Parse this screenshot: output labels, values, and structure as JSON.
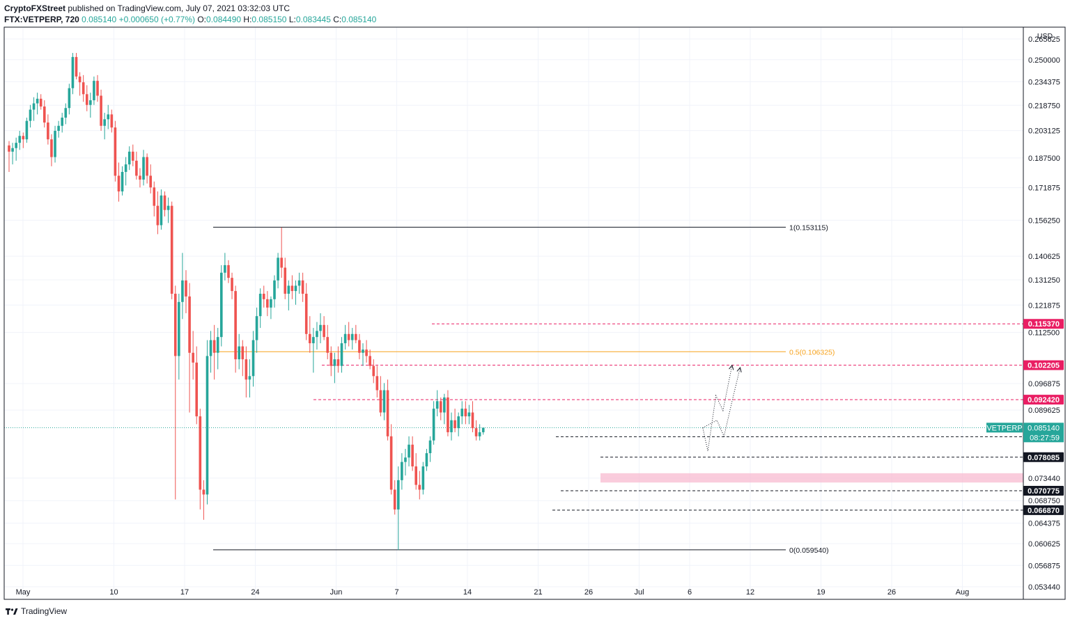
{
  "header": {
    "publisher": "CryptoFXStreet",
    "published_text": "published on TradingView.com, July 07, 2021 03:32:03 UTC",
    "symbol": "FTX:VETPERP, 720",
    "last": "0.085140",
    "change": "+0.000650 (+0.77%)",
    "o_label": "O:",
    "o": "0.084490",
    "h_label": "H:",
    "h": "0.085150",
    "l_label": "L:",
    "l": "0.083445",
    "c_label": "C:",
    "c": "0.085140"
  },
  "footer": {
    "brand": "TradingView",
    "logo_icon": "tradingview-logo-icon"
  },
  "chart_data": {
    "type": "candlestick",
    "currency": "USD",
    "y_ticks": [
      "0.265625",
      "0.250000",
      "0.234375",
      "0.218750",
      "0.203125",
      "0.187500",
      "0.171875",
      "0.156250",
      "0.140625",
      "0.131250",
      "0.121875",
      "0.112500",
      "0.096875",
      "0.089625",
      "0.073440",
      "0.068750",
      "0.064375",
      "0.060625",
      "0.056875",
      "0.053440"
    ],
    "x_ticks": [
      "May",
      "10",
      "17",
      "24",
      "Jun",
      "7",
      "14",
      "21",
      "26",
      "Jul",
      "6",
      "12",
      "19",
      "26",
      "Aug"
    ],
    "y_range": [
      0.0515,
      0.275
    ],
    "fib_levels": [
      {
        "label": "1(0.153115)",
        "value": 0.153115,
        "color": "#131722"
      },
      {
        "label": "0.5(0.106325)",
        "value": 0.106325,
        "color": "#f7a21b"
      },
      {
        "label": "0(0.059540)",
        "value": 0.05954,
        "color": "#131722"
      }
    ],
    "horizontal_levels": [
      {
        "label": "0.115370",
        "value": 0.11537,
        "style": "dashed",
        "color": "#e91e63"
      },
      {
        "label": "0.102205",
        "value": 0.102205,
        "style": "dashed",
        "color": "#e91e63"
      },
      {
        "label": "0.092420",
        "value": 0.09242,
        "style": "dashed",
        "color": "#e91e63"
      },
      {
        "label": "0.082910",
        "value": 0.08291,
        "style": "dashed",
        "color": "#131722"
      },
      {
        "label": "0.078085",
        "value": 0.078085,
        "style": "dashed",
        "color": "#131722"
      },
      {
        "label": "0.070775",
        "value": 0.070775,
        "style": "dashed",
        "color": "#131722"
      },
      {
        "label": "0.066870",
        "value": 0.06687,
        "style": "dashed",
        "color": "#131722"
      }
    ],
    "demand_zone": {
      "low": 0.0725,
      "high": 0.0745,
      "color": "#f8bbd0"
    },
    "price_tag": {
      "symbol": "VETPERP",
      "value": "0.085140",
      "countdown": "08:27:59",
      "color": "#26a69a"
    },
    "projection_paths": [
      [
        [
          7.3,
          0.0851
        ],
        [
          7.8,
          0.0795
        ],
        [
          8.6,
          0.0935
        ],
        [
          9.3,
          0.0895
        ],
        [
          10.2,
          0.1022
        ]
      ],
      [
        [
          7.3,
          0.0851
        ],
        [
          8.7,
          0.087
        ],
        [
          9.4,
          0.083
        ],
        [
          10.2,
          0.092
        ],
        [
          11.0,
          0.1015
        ]
      ]
    ],
    "candles": [
      [
        0.1945,
        0.197,
        0.18,
        0.191
      ],
      [
        0.191,
        0.196,
        0.184,
        0.193
      ],
      [
        0.193,
        0.199,
        0.186,
        0.196
      ],
      [
        0.196,
        0.203,
        0.192,
        0.2
      ],
      [
        0.2,
        0.202,
        0.193,
        0.198
      ],
      [
        0.198,
        0.211,
        0.196,
        0.209
      ],
      [
        0.209,
        0.219,
        0.205,
        0.216
      ],
      [
        0.216,
        0.224,
        0.209,
        0.22
      ],
      [
        0.22,
        0.227,
        0.213,
        0.223
      ],
      [
        0.223,
        0.226,
        0.216,
        0.218
      ],
      [
        0.218,
        0.222,
        0.205,
        0.208
      ],
      [
        0.208,
        0.213,
        0.195,
        0.198
      ],
      [
        0.198,
        0.201,
        0.183,
        0.188
      ],
      [
        0.188,
        0.206,
        0.185,
        0.203
      ],
      [
        0.203,
        0.209,
        0.199,
        0.206
      ],
      [
        0.206,
        0.214,
        0.202,
        0.211
      ],
      [
        0.211,
        0.22,
        0.207,
        0.217
      ],
      [
        0.217,
        0.233,
        0.213,
        0.23
      ],
      [
        0.23,
        0.255,
        0.226,
        0.252
      ],
      [
        0.252,
        0.255,
        0.236,
        0.238
      ],
      [
        0.238,
        0.241,
        0.225,
        0.234
      ],
      [
        0.234,
        0.239,
        0.221,
        0.226
      ],
      [
        0.226,
        0.232,
        0.215,
        0.219
      ],
      [
        0.219,
        0.227,
        0.211,
        0.222
      ],
      [
        0.222,
        0.238,
        0.219,
        0.235
      ],
      [
        0.235,
        0.239,
        0.221,
        0.225
      ],
      [
        0.225,
        0.229,
        0.203,
        0.206
      ],
      [
        0.206,
        0.214,
        0.198,
        0.21
      ],
      [
        0.21,
        0.219,
        0.204,
        0.213
      ],
      [
        0.213,
        0.216,
        0.202,
        0.205
      ],
      [
        0.205,
        0.209,
        0.175,
        0.178
      ],
      [
        0.178,
        0.185,
        0.165,
        0.17
      ],
      [
        0.17,
        0.183,
        0.168,
        0.18
      ],
      [
        0.18,
        0.188,
        0.173,
        0.184
      ],
      [
        0.184,
        0.194,
        0.181,
        0.191
      ],
      [
        0.191,
        0.195,
        0.183,
        0.186
      ],
      [
        0.186,
        0.191,
        0.176,
        0.178
      ],
      [
        0.178,
        0.182,
        0.172,
        0.176
      ],
      [
        0.176,
        0.192,
        0.173,
        0.188
      ],
      [
        0.188,
        0.19,
        0.174,
        0.178
      ],
      [
        0.178,
        0.184,
        0.169,
        0.172
      ],
      [
        0.172,
        0.175,
        0.158,
        0.163
      ],
      [
        0.163,
        0.17,
        0.15,
        0.154
      ],
      [
        0.154,
        0.171,
        0.152,
        0.168
      ],
      [
        0.168,
        0.17,
        0.158,
        0.161
      ],
      [
        0.161,
        0.167,
        0.155,
        0.163
      ],
      [
        0.163,
        0.165,
        0.124,
        0.126
      ],
      [
        0.126,
        0.129,
        0.069,
        0.105
      ],
      [
        0.105,
        0.126,
        0.098,
        0.123
      ],
      [
        0.123,
        0.142,
        0.117,
        0.131
      ],
      [
        0.131,
        0.135,
        0.119,
        0.125
      ],
      [
        0.125,
        0.13,
        0.089,
        0.106
      ],
      [
        0.106,
        0.113,
        0.098,
        0.103
      ],
      [
        0.103,
        0.108,
        0.086,
        0.088
      ],
      [
        0.088,
        0.09,
        0.067,
        0.071
      ],
      [
        0.071,
        0.073,
        0.065,
        0.07
      ],
      [
        0.07,
        0.11,
        0.068,
        0.105
      ],
      [
        0.105,
        0.113,
        0.1,
        0.11
      ],
      [
        0.11,
        0.115,
        0.098,
        0.106
      ],
      [
        0.106,
        0.114,
        0.101,
        0.111
      ],
      [
        0.111,
        0.137,
        0.108,
        0.134
      ],
      [
        0.134,
        0.142,
        0.131,
        0.137
      ],
      [
        0.137,
        0.139,
        0.13,
        0.132
      ],
      [
        0.132,
        0.134,
        0.124,
        0.127
      ],
      [
        0.127,
        0.129,
        0.1,
        0.104
      ],
      [
        0.104,
        0.112,
        0.101,
        0.108
      ],
      [
        0.108,
        0.11,
        0.099,
        0.104
      ],
      [
        0.104,
        0.108,
        0.093,
        0.098
      ],
      [
        0.098,
        0.104,
        0.093,
        0.099
      ],
      [
        0.099,
        0.113,
        0.096,
        0.11
      ],
      [
        0.11,
        0.121,
        0.106,
        0.118
      ],
      [
        0.118,
        0.128,
        0.114,
        0.126
      ],
      [
        0.126,
        0.129,
        0.121,
        0.124
      ],
      [
        0.124,
        0.127,
        0.118,
        0.121
      ],
      [
        0.121,
        0.125,
        0.117,
        0.124
      ],
      [
        0.124,
        0.133,
        0.121,
        0.131
      ],
      [
        0.131,
        0.142,
        0.128,
        0.14
      ],
      [
        0.14,
        0.153,
        0.132,
        0.136
      ],
      [
        0.136,
        0.14,
        0.124,
        0.126
      ],
      [
        0.126,
        0.131,
        0.12,
        0.129
      ],
      [
        0.129,
        0.133,
        0.124,
        0.127
      ],
      [
        0.127,
        0.131,
        0.122,
        0.129
      ],
      [
        0.129,
        0.134,
        0.126,
        0.131
      ],
      [
        0.131,
        0.134,
        0.123,
        0.126
      ],
      [
        0.126,
        0.13,
        0.11,
        0.112
      ],
      [
        0.112,
        0.118,
        0.106,
        0.109
      ],
      [
        0.109,
        0.114,
        0.1,
        0.111
      ],
      [
        0.111,
        0.116,
        0.107,
        0.113
      ],
      [
        0.113,
        0.119,
        0.109,
        0.115
      ],
      [
        0.115,
        0.118,
        0.11,
        0.111
      ],
      [
        0.111,
        0.115,
        0.104,
        0.106
      ],
      [
        0.106,
        0.108,
        0.099,
        0.102
      ],
      [
        0.102,
        0.106,
        0.097,
        0.104
      ],
      [
        0.104,
        0.108,
        0.1,
        0.102
      ],
      [
        0.102,
        0.111,
        0.1,
        0.109
      ],
      [
        0.109,
        0.115,
        0.107,
        0.112
      ],
      [
        0.112,
        0.116,
        0.108,
        0.11
      ],
      [
        0.11,
        0.114,
        0.107,
        0.112
      ],
      [
        0.112,
        0.115,
        0.109,
        0.11
      ],
      [
        0.11,
        0.112,
        0.104,
        0.106
      ],
      [
        0.106,
        0.109,
        0.102,
        0.107
      ],
      [
        0.107,
        0.11,
        0.103,
        0.105
      ],
      [
        0.105,
        0.107,
        0.101,
        0.102
      ],
      [
        0.102,
        0.104,
        0.097,
        0.099
      ],
      [
        0.099,
        0.102,
        0.093,
        0.095
      ],
      [
        0.095,
        0.099,
        0.088,
        0.089
      ],
      [
        0.089,
        0.097,
        0.087,
        0.095
      ],
      [
        0.095,
        0.098,
        0.082,
        0.083
      ],
      [
        0.083,
        0.086,
        0.07,
        0.071
      ],
      [
        0.071,
        0.073,
        0.066,
        0.067
      ],
      [
        0.067,
        0.076,
        0.0595,
        0.073
      ],
      [
        0.073,
        0.079,
        0.071,
        0.077
      ],
      [
        0.077,
        0.08,
        0.074,
        0.078
      ],
      [
        0.078,
        0.083,
        0.076,
        0.081
      ],
      [
        0.081,
        0.083,
        0.075,
        0.076
      ],
      [
        0.076,
        0.079,
        0.071,
        0.072
      ],
      [
        0.072,
        0.075,
        0.069,
        0.071
      ],
      [
        0.071,
        0.077,
        0.07,
        0.076
      ],
      [
        0.076,
        0.08,
        0.075,
        0.079
      ],
      [
        0.079,
        0.083,
        0.077,
        0.082
      ],
      [
        0.082,
        0.092,
        0.081,
        0.09
      ],
      [
        0.09,
        0.095,
        0.088,
        0.092
      ],
      [
        0.092,
        0.093,
        0.087,
        0.089
      ],
      [
        0.089,
        0.094,
        0.086,
        0.093
      ],
      [
        0.093,
        0.095,
        0.083,
        0.084
      ],
      [
        0.084,
        0.089,
        0.082,
        0.087
      ],
      [
        0.087,
        0.09,
        0.084,
        0.085
      ],
      [
        0.085,
        0.089,
        0.083,
        0.088
      ],
      [
        0.088,
        0.092,
        0.086,
        0.09
      ],
      [
        0.09,
        0.092,
        0.086,
        0.088
      ],
      [
        0.088,
        0.091,
        0.086,
        0.089
      ],
      [
        0.089,
        0.092,
        0.084,
        0.085
      ],
      [
        0.085,
        0.087,
        0.082,
        0.083
      ],
      [
        0.083,
        0.086,
        0.082,
        0.084
      ],
      [
        0.084,
        0.0852,
        0.0834,
        0.0851
      ]
    ]
  }
}
